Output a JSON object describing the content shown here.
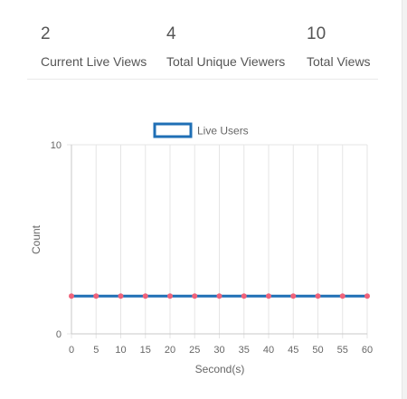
{
  "stats": [
    {
      "value": "2",
      "label": "Current Live Views"
    },
    {
      "value": "4",
      "label": "Total Unique Viewers"
    },
    {
      "value": "10",
      "label": "Total Views"
    }
  ],
  "colors": {
    "line": "#1f6fb5",
    "point": "#f0627a",
    "grid": "#e5e5e5",
    "axis_text": "#666666",
    "stat_text": "#555555"
  },
  "chart_data": {
    "type": "line",
    "title": "",
    "xlabel": "Second(s)",
    "ylabel": "Count",
    "xlim": [
      0,
      60
    ],
    "ylim": [
      0,
      10
    ],
    "x_ticks": [
      "0",
      "5",
      "10",
      "15",
      "20",
      "25",
      "30",
      "35",
      "40",
      "45",
      "50",
      "55",
      "60"
    ],
    "y_ticks": [
      "0",
      "10"
    ],
    "legend_position": "top",
    "grid": true,
    "series": [
      {
        "name": "Live Users",
        "x": [
          0,
          5,
          10,
          15,
          20,
          25,
          30,
          35,
          40,
          45,
          50,
          55,
          60
        ],
        "values": [
          2,
          2,
          2,
          2,
          2,
          2,
          2,
          2,
          2,
          2,
          2,
          2,
          2
        ]
      }
    ]
  }
}
